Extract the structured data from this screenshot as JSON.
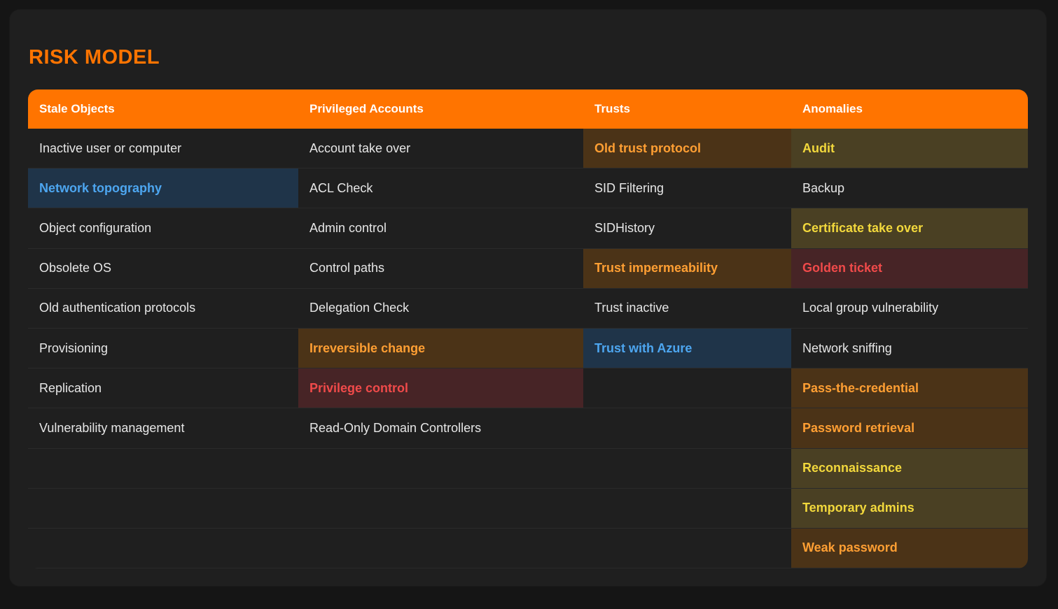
{
  "title": "RISK MODEL",
  "colors": {
    "accent": "#ff7400",
    "blue": "#4da6f0",
    "orange": "#ff9f33",
    "yellow": "#f2d83c",
    "red": "#f04a4a"
  },
  "columns": [
    {
      "header": "Stale Objects",
      "items": [
        {
          "label": "Inactive user or computer",
          "level": "none"
        },
        {
          "label": "Network topography",
          "level": "blue"
        },
        {
          "label": "Object configuration",
          "level": "none"
        },
        {
          "label": "Obsolete OS",
          "level": "none"
        },
        {
          "label": "Old authentication protocols",
          "level": "none"
        },
        {
          "label": "Provisioning",
          "level": "none"
        },
        {
          "label": "Replication",
          "level": "none"
        },
        {
          "label": "Vulnerability management",
          "level": "none"
        }
      ]
    },
    {
      "header": "Privileged Accounts",
      "items": [
        {
          "label": "Account take over",
          "level": "none"
        },
        {
          "label": "ACL Check",
          "level": "none"
        },
        {
          "label": "Admin control",
          "level": "none"
        },
        {
          "label": "Control paths",
          "level": "none"
        },
        {
          "label": "Delegation Check",
          "level": "none"
        },
        {
          "label": "Irreversible change",
          "level": "orange"
        },
        {
          "label": "Privilege control",
          "level": "red"
        },
        {
          "label": "Read-Only Domain Controllers",
          "level": "none"
        }
      ]
    },
    {
      "header": "Trusts",
      "items": [
        {
          "label": "Old trust protocol",
          "level": "orange"
        },
        {
          "label": "SID Filtering",
          "level": "none"
        },
        {
          "label": "SIDHistory",
          "level": "none"
        },
        {
          "label": "Trust impermeability",
          "level": "orange"
        },
        {
          "label": "Trust inactive",
          "level": "none"
        },
        {
          "label": "Trust with Azure",
          "level": "blue"
        }
      ]
    },
    {
      "header": "Anomalies",
      "items": [
        {
          "label": "Audit",
          "level": "yellow"
        },
        {
          "label": "Backup",
          "level": "none"
        },
        {
          "label": "Certificate take over",
          "level": "yellow"
        },
        {
          "label": "Golden ticket",
          "level": "red"
        },
        {
          "label": "Local group vulnerability",
          "level": "none"
        },
        {
          "label": "Network sniffing",
          "level": "none"
        },
        {
          "label": "Pass-the-credential",
          "level": "orange"
        },
        {
          "label": "Password retrieval",
          "level": "orange"
        },
        {
          "label": "Reconnaissance",
          "level": "yellow"
        },
        {
          "label": "Temporary admins",
          "level": "yellow"
        },
        {
          "label": "Weak password",
          "level": "orange"
        }
      ]
    }
  ]
}
